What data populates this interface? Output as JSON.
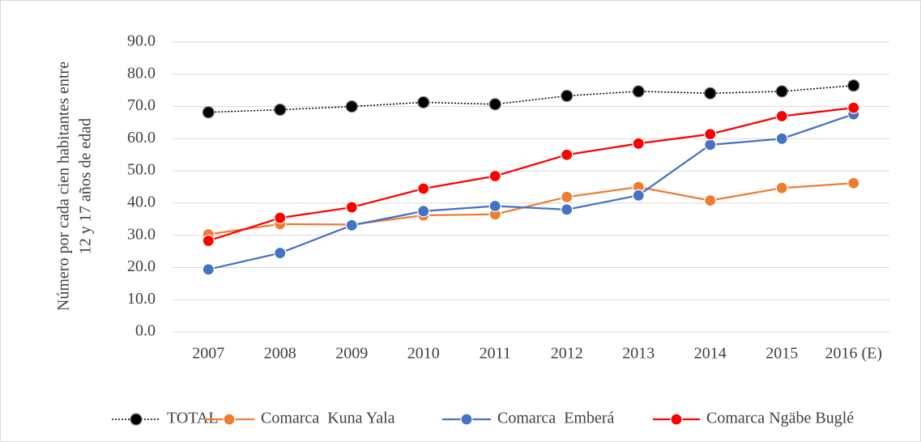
{
  "chart_data": {
    "type": "line",
    "ylabel": [
      "Número por cada cien habitantes entre",
      "12 y 17 años de edad"
    ],
    "categories": [
      "2007",
      "2008",
      "2009",
      "2010",
      "2011",
      "2012",
      "2013",
      "2014",
      "2015",
      "2016 (E)"
    ],
    "series": [
      {
        "name": "TOTAL",
        "color": "#000000",
        "dashed": true,
        "values": [
          68.2,
          69.0,
          70.0,
          71.3,
          70.7,
          73.3,
          74.7,
          74.1,
          74.7,
          76.5
        ]
      },
      {
        "name": "Comarca  Kuna Yala",
        "color": "#ed7d31",
        "values": [
          30.3,
          33.5,
          33.3,
          36.2,
          36.5,
          41.9,
          45.0,
          40.8,
          44.7,
          46.2
        ]
      },
      {
        "name": "Comarca  Emberá",
        "color": "#4472c4",
        "values": [
          19.4,
          24.5,
          33.1,
          37.5,
          39.1,
          38.0,
          42.4,
          58.1,
          60.0,
          67.6
        ]
      },
      {
        "name": "Comarca Ngäbe Buglé",
        "color": "#ff0000",
        "values": [
          28.3,
          35.4,
          38.7,
          44.5,
          48.4,
          55.0,
          58.5,
          61.4,
          67.0,
          69.6
        ]
      }
    ],
    "ylim": [
      0,
      90
    ],
    "yticks": [
      {
        "value": 0,
        "label": "0.0"
      },
      {
        "value": 10,
        "label": "10.0"
      },
      {
        "value": 20,
        "label": "20.0"
      },
      {
        "value": 30,
        "label": "30.0"
      },
      {
        "value": 40,
        "label": "40.0"
      },
      {
        "value": 50,
        "label": "50.0"
      },
      {
        "value": 60,
        "label": "60.0"
      },
      {
        "value": 70,
        "label": "70.0"
      },
      {
        "value": 80,
        "label": "80.0"
      },
      {
        "value": 90,
        "label": "90.0"
      }
    ],
    "grid": true
  }
}
